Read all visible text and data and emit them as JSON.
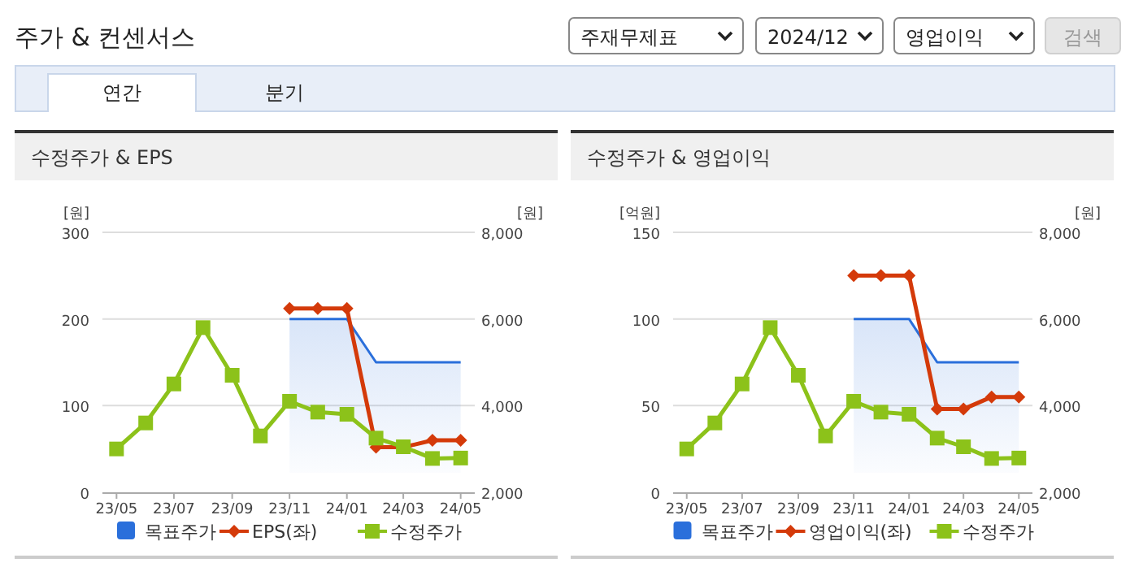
{
  "chart_data": [
    {
      "type": "other",
      "title": "주가 & 컨센서스",
      "annotations": [
        "주재무제표",
        "2024/12",
        "영업이익",
        "검색",
        "연간",
        "분기"
      ]
    },
    {
      "type": "line",
      "title": "수정주가 & EPS",
      "ylabel": "[원]",
      "y2label": "[원]",
      "x": [
        "2023-05",
        "2023-06",
        "2023-07",
        "2023-08",
        "2023-09",
        "2023-10",
        "2023-11",
        "2023-12",
        "2024-01",
        "2024-02",
        "2024-03",
        "2024-04",
        "2024-05"
      ],
      "xlim": [
        "2023-04-16",
        "2024-05-16"
      ],
      "xticks": [
        {
          "value": "2023-05",
          "label": "23/05"
        },
        {
          "value": "2023-07",
          "label": "23/07"
        },
        {
          "value": "2023-09",
          "label": "23/09"
        },
        {
          "value": "2023-11",
          "label": "23/11"
        },
        {
          "value": "2024-01",
          "label": "24/01"
        },
        {
          "value": "2024-03",
          "label": "24/03"
        },
        {
          "value": "2024-05",
          "label": "24/05"
        }
      ],
      "ylim": [
        0,
        300
      ],
      "yticks": [
        0,
        100,
        200,
        300
      ],
      "y2lim": [
        2000,
        8000
      ],
      "y2ticks": [
        {
          "value": 2000,
          "label": "2,000"
        },
        {
          "value": 4000,
          "label": "4,000"
        },
        {
          "value": 6000,
          "label": "6,000"
        },
        {
          "value": 8000,
          "label": "8,000"
        }
      ],
      "grid": "y",
      "legend": "bottom",
      "series": [
        {
          "name": "목표주가",
          "type": "area",
          "axis": "y2",
          "color": "#2a6fdb",
          "marker": "none",
          "values": [
            null,
            null,
            null,
            null,
            null,
            null,
            6000,
            6000,
            6000,
            5000,
            5000,
            5000,
            5000
          ]
        },
        {
          "name": "EPS(좌)",
          "type": "line",
          "color": "#d43a0a",
          "marker": "diamond",
          "values": [
            null,
            null,
            null,
            null,
            null,
            null,
            212,
            212,
            212,
            52,
            52,
            60,
            60
          ]
        },
        {
          "name": "수정주가",
          "type": "line",
          "axis": "y2",
          "color": "#8cc21a",
          "marker": "square",
          "values": [
            3000,
            3600,
            4500,
            5800,
            4700,
            3300,
            4100,
            3850,
            3800,
            3250,
            3050,
            2780,
            2790
          ]
        }
      ]
    },
    {
      "type": "line",
      "title": "수정주가 & 영업이익",
      "ylabel": "[억원]",
      "y2label": "[원]",
      "x": [
        "2023-05",
        "2023-06",
        "2023-07",
        "2023-08",
        "2023-09",
        "2023-10",
        "2023-11",
        "2023-12",
        "2024-01",
        "2024-02",
        "2024-03",
        "2024-04",
        "2024-05"
      ],
      "xlim": [
        "2023-04-16",
        "2024-05-16"
      ],
      "xticks": [
        {
          "value": "2023-05",
          "label": "23/05"
        },
        {
          "value": "2023-07",
          "label": "23/07"
        },
        {
          "value": "2023-09",
          "label": "23/09"
        },
        {
          "value": "2023-11",
          "label": "23/11"
        },
        {
          "value": "2024-01",
          "label": "24/01"
        },
        {
          "value": "2024-03",
          "label": "24/03"
        },
        {
          "value": "2024-05",
          "label": "24/05"
        }
      ],
      "ylim": [
        0,
        150
      ],
      "yticks": [
        0,
        50,
        100,
        150
      ],
      "y2lim": [
        2000,
        8000
      ],
      "y2ticks": [
        {
          "value": 2000,
          "label": "2,000"
        },
        {
          "value": 4000,
          "label": "4,000"
        },
        {
          "value": 6000,
          "label": "6,000"
        },
        {
          "value": 8000,
          "label": "8,000"
        }
      ],
      "grid": "y",
      "legend": "bottom",
      "series": [
        {
          "name": "목표주가",
          "type": "area",
          "axis": "y2",
          "color": "#2a6fdb",
          "marker": "none",
          "values": [
            null,
            null,
            null,
            null,
            null,
            null,
            6000,
            6000,
            6000,
            5000,
            5000,
            5000,
            5000
          ]
        },
        {
          "name": "영업이익(좌)",
          "type": "line",
          "color": "#d43a0a",
          "marker": "diamond",
          "values": [
            null,
            null,
            null,
            null,
            null,
            null,
            125,
            125,
            125,
            48,
            48,
            55,
            55
          ]
        },
        {
          "name": "수정주가",
          "type": "line",
          "axis": "y2",
          "color": "#8cc21a",
          "marker": "square",
          "values": [
            3000,
            3600,
            4500,
            5800,
            4700,
            3300,
            4100,
            3850,
            3800,
            3250,
            3050,
            2780,
            2790
          ]
        }
      ]
    }
  ]
}
